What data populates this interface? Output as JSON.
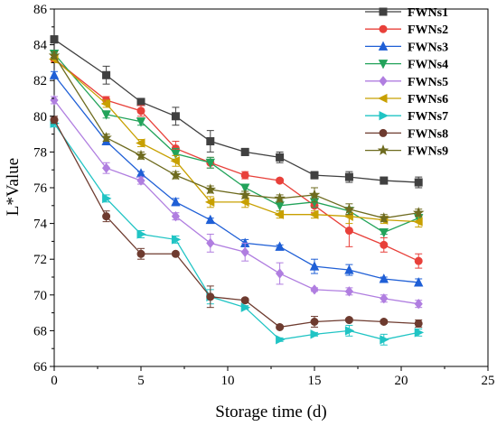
{
  "chart_data": {
    "type": "line",
    "xlabel": "Storage time (d)",
    "ylabel": "L*Value",
    "xlim": [
      0,
      25
    ],
    "ylim": [
      66,
      86
    ],
    "x_ticks": [
      0,
      5,
      10,
      15,
      20,
      25
    ],
    "y_ticks": [
      66,
      68,
      70,
      72,
      74,
      76,
      78,
      80,
      82,
      84,
      86
    ],
    "grid": false,
    "legend_position": "top-right",
    "x": [
      0,
      3,
      5,
      7,
      9,
      11,
      13,
      15,
      17,
      19,
      21
    ],
    "series": [
      {
        "name": "FWNs1",
        "color": "#404040",
        "marker": "square",
        "values": [
          84.3,
          82.3,
          80.8,
          80.0,
          78.6,
          78.0,
          77.7,
          76.7,
          76.6,
          76.4,
          76.3
        ],
        "errors": [
          0.2,
          0.5,
          0.15,
          0.5,
          0.6,
          0.2,
          0.3,
          0.2,
          0.3,
          0.1,
          0.3
        ]
      },
      {
        "name": "FWNs2",
        "color": "#e8403a",
        "marker": "circle",
        "values": [
          83.2,
          80.9,
          80.3,
          78.2,
          77.4,
          76.7,
          76.4,
          75.0,
          73.6,
          72.8,
          71.9
        ],
        "errors": [
          0.2,
          0.2,
          0.3,
          0.4,
          0.3,
          0.2,
          0.1,
          0.4,
          0.9,
          0.4,
          0.4
        ]
      },
      {
        "name": "FWNs3",
        "color": "#1f5fd6",
        "marker": "triangle-up",
        "values": [
          82.3,
          78.6,
          76.8,
          75.2,
          74.2,
          72.9,
          72.7,
          71.6,
          71.4,
          70.9,
          70.7
        ],
        "errors": [
          0.2,
          0.2,
          0.1,
          0.2,
          0.1,
          0.2,
          0.1,
          0.4,
          0.3,
          0.1,
          0.2
        ]
      },
      {
        "name": "FWNs4",
        "color": "#22a35a",
        "marker": "triangle-down",
        "values": [
          83.5,
          80.1,
          79.7,
          77.9,
          77.4,
          76.0,
          75.0,
          75.2,
          74.7,
          73.5,
          74.3
        ],
        "errors": [
          0.2,
          0.2,
          0.2,
          0.3,
          0.3,
          0.2,
          0.3,
          0.3,
          0.2,
          0.1,
          0.2
        ]
      },
      {
        "name": "FWNs5",
        "color": "#b07ee0",
        "marker": "diamond",
        "values": [
          80.9,
          77.1,
          76.4,
          74.4,
          72.9,
          72.4,
          71.2,
          70.3,
          70.2,
          69.8,
          69.5
        ],
        "errors": [
          0.2,
          0.3,
          0.2,
          0.2,
          0.5,
          0.5,
          0.6,
          0.1,
          0.2,
          0.2,
          0.2
        ]
      },
      {
        "name": "FWNs6",
        "color": "#c8a000",
        "marker": "triangle-left",
        "values": [
          83.2,
          80.7,
          78.5,
          77.5,
          75.2,
          75.2,
          74.5,
          74.5,
          74.4,
          74.2,
          74.1
        ],
        "errors": [
          0.2,
          0.2,
          0.2,
          0.3,
          0.3,
          0.3,
          0.2,
          0.2,
          0.4,
          0.2,
          0.3
        ]
      },
      {
        "name": "FWNs7",
        "color": "#20c4c4",
        "marker": "triangle-right",
        "values": [
          79.6,
          75.4,
          73.4,
          73.1,
          69.9,
          69.3,
          67.5,
          67.8,
          68.0,
          67.5,
          67.9
        ],
        "errors": [
          0.2,
          0.2,
          0.2,
          0.2,
          0.4,
          0.1,
          0.1,
          0.1,
          0.3,
          0.3,
          0.2
        ]
      },
      {
        "name": "FWNs8",
        "color": "#6e3b2f",
        "marker": "circle",
        "values": [
          79.8,
          74.4,
          72.3,
          72.3,
          69.9,
          69.7,
          68.2,
          68.5,
          68.6,
          68.5,
          68.4
        ],
        "errors": [
          0.2,
          0.3,
          0.3,
          0.1,
          0.6,
          0.1,
          0.1,
          0.3,
          0.1,
          0.1,
          0.2
        ]
      },
      {
        "name": "FWNs9",
        "color": "#6e6b1f",
        "marker": "star",
        "values": [
          83.4,
          78.8,
          77.8,
          76.7,
          75.9,
          75.6,
          75.4,
          75.6,
          74.8,
          74.3,
          74.6
        ],
        "errors": [
          0.2,
          0.2,
          0.2,
          0.2,
          0.2,
          0.2,
          0.2,
          0.4,
          0.3,
          0.2,
          0.2
        ]
      }
    ]
  }
}
